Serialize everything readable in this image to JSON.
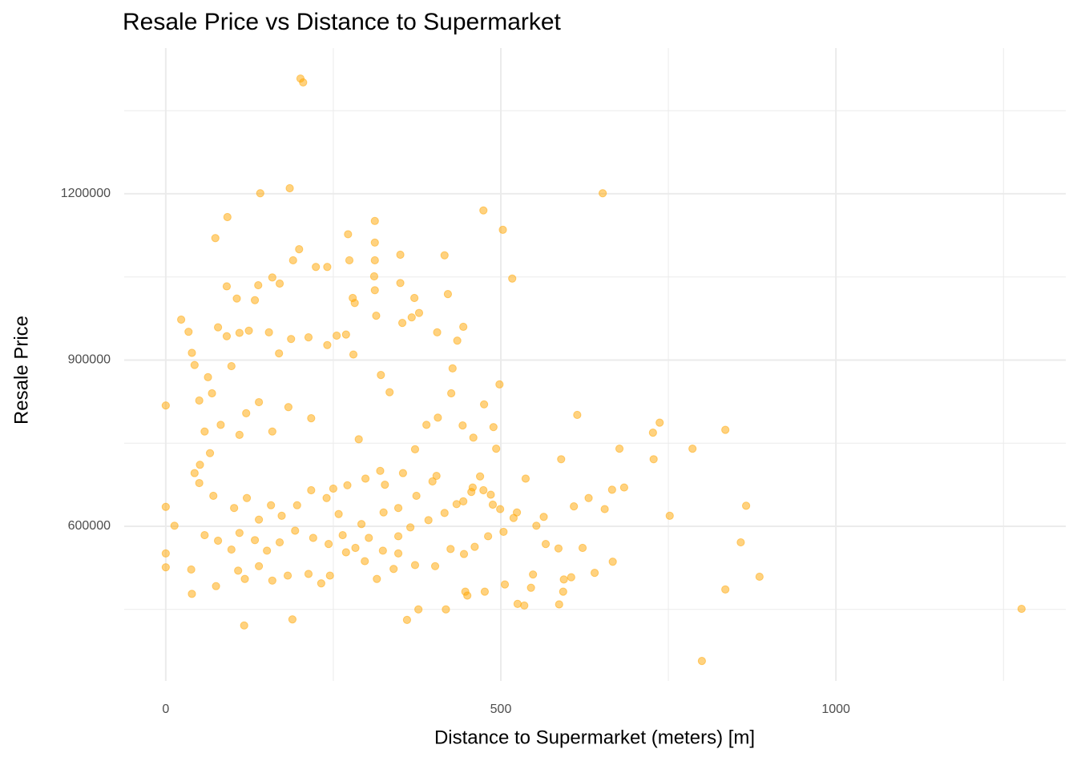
{
  "chart_data": {
    "type": "scatter",
    "title": "Resale Price vs Distance to Supermarket",
    "x_label": "Distance to Supermarket (meters) [m]",
    "y_label": "Resale Price",
    "color": "#FFA500",
    "grid": true,
    "xlim": [
      -62,
      1343
    ],
    "ylim": [
      321000,
      1463000
    ],
    "xticks": [
      0,
      500,
      1000
    ],
    "yticks": [
      600000,
      900000,
      1200000
    ],
    "x_minor_grid": [
      250,
      750,
      1250
    ],
    "y_minor_grid": [
      450000,
      750000,
      1050000,
      1350000
    ],
    "x": [
      201,
      205,
      652,
      185,
      141,
      1277,
      800,
      0,
      0,
      0,
      0,
      13,
      474,
      503,
      517,
      416,
      614,
      737,
      835,
      786,
      727,
      677,
      728,
      590,
      752,
      866,
      858,
      886,
      835,
      684,
      666,
      631,
      655,
      640,
      667,
      622,
      587,
      593,
      594,
      605,
      586,
      567,
      553,
      564,
      609,
      548,
      535,
      525,
      545,
      537,
      506,
      476,
      447,
      450,
      418,
      377,
      360,
      189,
      117,
      39,
      75,
      38,
      23,
      34,
      39,
      43,
      74,
      92,
      91,
      91,
      106,
      138,
      133,
      159,
      170,
      190,
      199,
      224,
      241,
      272,
      274,
      312,
      312,
      312,
      350,
      311,
      312,
      314,
      279,
      282,
      350,
      371,
      367,
      421,
      444,
      405,
      435,
      428,
      426,
      475,
      498,
      443,
      489,
      459,
      493,
      406,
      404,
      469,
      485,
      488,
      499,
      519,
      474,
      458,
      444,
      398,
      320,
      288,
      250,
      217,
      183,
      159,
      139,
      120,
      110,
      82,
      69,
      63,
      50,
      58,
      66,
      51,
      43,
      50,
      71,
      58,
      78,
      98,
      108,
      118,
      139,
      159,
      182,
      213,
      232,
      245,
      269,
      297,
      315,
      340,
      347,
      372,
      402,
      425,
      445,
      461,
      481,
      504,
      524,
      374,
      347,
      325,
      292,
      258,
      240,
      217,
      196,
      173,
      157,
      139,
      121,
      102,
      110,
      133,
      151,
      170,
      193,
      220,
      243,
      264,
      283,
      303,
      324,
      347,
      365,
      392,
      416,
      434,
      456,
      271,
      298,
      327,
      354,
      372,
      389,
      334,
      321,
      280,
      255,
      241,
      213,
      187,
      154,
      124,
      110,
      78,
      98,
      169,
      269,
      353,
      378
    ],
    "values": [
      1408000,
      1401000,
      1201000,
      1210000,
      1201000,
      451000,
      357000,
      818000,
      635000,
      551000,
      526000,
      601000,
      1170000,
      1135000,
      1047000,
      1089000,
      801000,
      787000,
      774000,
      740000,
      769000,
      740000,
      721000,
      721000,
      619000,
      637000,
      571000,
      509000,
      486000,
      670000,
      666000,
      651000,
      631000,
      516000,
      536000,
      561000,
      459000,
      482000,
      504000,
      508000,
      560000,
      568000,
      601000,
      617000,
      636000,
      513000,
      457000,
      460000,
      489000,
      686000,
      495000,
      482000,
      482000,
      475000,
      450000,
      450000,
      431000,
      432000,
      421000,
      478000,
      492000,
      522000,
      973000,
      951000,
      913000,
      891000,
      1120000,
      1158000,
      1033000,
      943000,
      1011000,
      1035000,
      1008000,
      1049000,
      1038000,
      1080000,
      1100000,
      1068000,
      1068000,
      1127000,
      1080000,
      1151000,
      1112000,
      1080000,
      1090000,
      1051000,
      1026000,
      980000,
      1012000,
      1003000,
      1039000,
      1012000,
      977000,
      1019000,
      960000,
      950000,
      935000,
      885000,
      840000,
      820000,
      856000,
      782000,
      779000,
      760000,
      740000,
      796000,
      691000,
      690000,
      657000,
      639000,
      631000,
      615000,
      665000,
      670000,
      645000,
      681000,
      700000,
      757000,
      668000,
      795000,
      815000,
      771000,
      824000,
      804000,
      765000,
      783000,
      840000,
      869000,
      827000,
      771000,
      732000,
      711000,
      696000,
      678000,
      655000,
      584000,
      574000,
      558000,
      520000,
      505000,
      528000,
      502000,
      511000,
      514000,
      497000,
      511000,
      553000,
      537000,
      505000,
      523000,
      551000,
      530000,
      528000,
      559000,
      550000,
      563000,
      582000,
      590000,
      625000,
      655000,
      633000,
      625000,
      604000,
      622000,
      651000,
      665000,
      638000,
      619000,
      638000,
      612000,
      651000,
      633000,
      588000,
      575000,
      556000,
      571000,
      592000,
      579000,
      568000,
      584000,
      561000,
      579000,
      556000,
      582000,
      598000,
      611000,
      624000,
      640000,
      662000,
      674000,
      686000,
      675000,
      696000,
      739000,
      783000,
      842000,
      873000,
      910000,
      944000,
      927000,
      941000,
      938000,
      950000,
      953000,
      949000,
      959000,
      889000,
      912000,
      946000,
      967000,
      985000
    ]
  }
}
